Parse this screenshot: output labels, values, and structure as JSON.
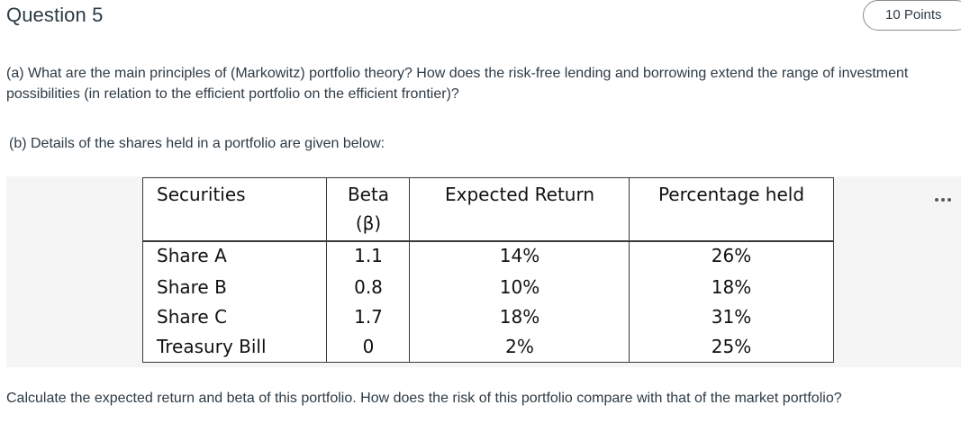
{
  "question": {
    "title": "Question 5",
    "points": "10 Points",
    "part_a": "(a) What are the main principles of (Markowitz) portfolio theory? How does the risk-free lending and borrowing extend the range of investment possibilities (in relation to the efficient portfolio on the efficient frontier)?",
    "part_b_intro": "(b) Details of the shares held in a portfolio are given below:",
    "part_b_task": "Calculate the expected return and beta of this portfolio. How does the risk of this portfolio compare with that of the market portfolio?"
  },
  "table": {
    "headers": {
      "securities": "Securities",
      "beta": "Beta",
      "beta_symbol": "(β)",
      "expected_return": "Expected Return",
      "percentage_held": "Percentage held"
    },
    "rows": [
      {
        "security": "Share A",
        "beta": "1.1",
        "expected_return": "14%",
        "percentage_held": "26%"
      },
      {
        "security": "Share B",
        "beta": "0.8",
        "expected_return": "10%",
        "percentage_held": "18%"
      },
      {
        "security": "Share C",
        "beta": "1.7",
        "expected_return": "18%",
        "percentage_held": "31%"
      },
      {
        "security": "Treasury Bill",
        "beta": "0",
        "expected_return": "2%",
        "percentage_held": "25%"
      }
    ]
  },
  "icons": {
    "more": "more-horizontal-icon"
  }
}
